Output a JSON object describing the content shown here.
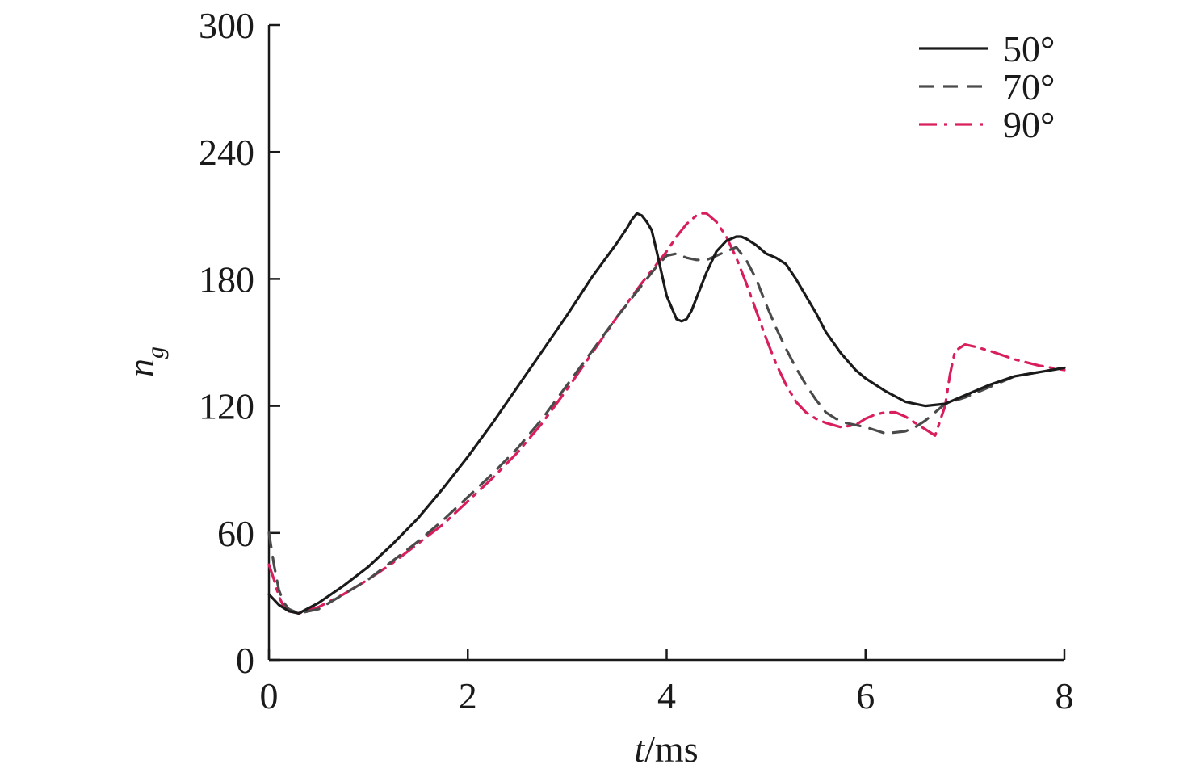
{
  "chart_data": {
    "type": "line",
    "title": "",
    "xlabel_italic": "t",
    "xlabel_unit": "/ms",
    "ylabel_main": "n",
    "ylabel_sub": "g",
    "xlim": [
      0,
      8
    ],
    "ylim": [
      0,
      300
    ],
    "xticks": [
      0,
      2,
      4,
      6,
      8
    ],
    "yticks": [
      0,
      60,
      120,
      180,
      240,
      300
    ],
    "legend_position": "top-right",
    "grid": false,
    "series": [
      {
        "name": "50°",
        "color": "#1a1a1a",
        "dash": "solid",
        "x": [
          0,
          0.1,
          0.2,
          0.3,
          0.5,
          0.75,
          1.0,
          1.25,
          1.5,
          1.75,
          2.0,
          2.25,
          2.5,
          2.75,
          3.0,
          3.25,
          3.5,
          3.6,
          3.65,
          3.7,
          3.75,
          3.8,
          3.85,
          3.9,
          4.0,
          4.1,
          4.15,
          4.2,
          4.25,
          4.3,
          4.4,
          4.5,
          4.6,
          4.7,
          4.75,
          4.8,
          4.9,
          5.0,
          5.1,
          5.2,
          5.3,
          5.4,
          5.5,
          5.6,
          5.75,
          5.9,
          6.0,
          6.2,
          6.4,
          6.6,
          6.8,
          7.0,
          7.25,
          7.5,
          7.75,
          8.0
        ],
        "y": [
          31,
          26,
          23,
          22,
          27,
          35,
          44,
          55,
          67,
          81,
          96,
          112,
          129,
          146,
          163,
          181,
          197,
          204,
          208,
          211,
          210,
          207,
          203,
          193,
          172,
          161,
          160,
          161,
          165,
          171,
          183,
          193,
          198,
          200,
          200,
          199,
          196,
          192,
          190,
          187,
          180,
          172,
          164,
          155,
          145,
          137,
          133,
          127,
          122,
          120,
          121,
          125,
          130,
          134,
          136,
          138
        ]
      },
      {
        "name": "70°",
        "color": "#4a4a4a",
        "dash": "18 12",
        "x": [
          0,
          0.05,
          0.1,
          0.15,
          0.2,
          0.3,
          0.5,
          0.75,
          1.0,
          1.25,
          1.5,
          1.75,
          2.0,
          2.25,
          2.5,
          2.75,
          3.0,
          3.25,
          3.5,
          3.75,
          3.9,
          4.0,
          4.1,
          4.2,
          4.3,
          4.4,
          4.5,
          4.6,
          4.7,
          4.8,
          4.9,
          5.0,
          5.1,
          5.2,
          5.3,
          5.4,
          5.5,
          5.6,
          5.7,
          5.8,
          6.0,
          6.2,
          6.4,
          6.5,
          6.6,
          6.7,
          6.8,
          7.0,
          7.25,
          7.5,
          7.75,
          8.0
        ],
        "y": [
          60,
          45,
          33,
          27,
          24,
          22,
          24,
          31,
          38,
          47,
          56,
          66,
          77,
          88,
          100,
          114,
          130,
          146,
          162,
          177,
          186,
          191,
          192,
          190,
          189,
          189,
          191,
          193,
          195,
          189,
          180,
          168,
          157,
          147,
          138,
          130,
          123,
          117,
          114,
          112,
          110,
          107,
          108,
          110,
          113,
          117,
          121,
          124,
          129,
          134,
          136,
          138
        ]
      },
      {
        "name": "90°",
        "color": "#d81e5b",
        "dash": "22 9 4 9",
        "x": [
          0,
          0.05,
          0.1,
          0.15,
          0.2,
          0.3,
          0.5,
          0.75,
          1.0,
          1.25,
          1.5,
          1.75,
          2.0,
          2.25,
          2.5,
          2.75,
          3.0,
          3.25,
          3.5,
          3.75,
          4.0,
          4.1,
          4.2,
          4.3,
          4.35,
          4.4,
          4.5,
          4.6,
          4.7,
          4.8,
          4.9,
          5.0,
          5.1,
          5.2,
          5.3,
          5.4,
          5.5,
          5.6,
          5.75,
          5.9,
          6.0,
          6.1,
          6.2,
          6.3,
          6.4,
          6.5,
          6.6,
          6.7,
          6.8,
          6.85,
          6.9,
          7.0,
          7.1,
          7.25,
          7.5,
          7.75,
          8.0
        ],
        "y": [
          45,
          38,
          30,
          25,
          23,
          22,
          25,
          31,
          38,
          46,
          55,
          64,
          75,
          86,
          98,
          112,
          128,
          145,
          162,
          178,
          193,
          200,
          206,
          210,
          211,
          211,
          207,
          200,
          190,
          178,
          165,
          152,
          140,
          130,
          122,
          117,
          114,
          112,
          110,
          111,
          114,
          116,
          117,
          117,
          115,
          112,
          109,
          106,
          120,
          135,
          146,
          149,
          148,
          146,
          142,
          139,
          137
        ]
      }
    ]
  }
}
